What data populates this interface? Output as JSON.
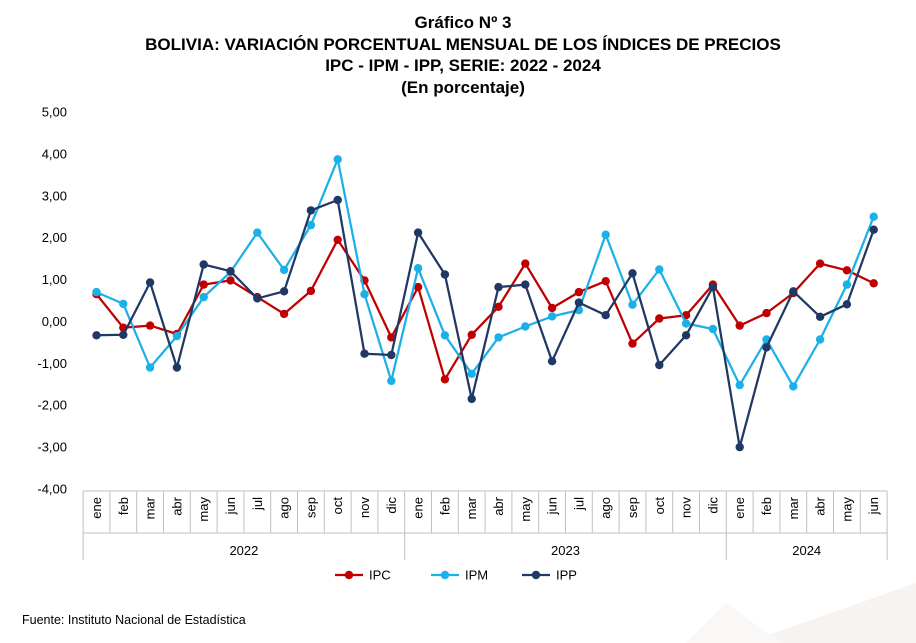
{
  "title": "Gráfico Nº 3",
  "subtitle1": "BOLIVIA: VARIACIÓN PORCENTUAL MENSUAL DE LOS ÍNDICES DE PRECIOS",
  "subtitle2": "IPC - IPM - IPP, SERIE: 2022 - 2024",
  "subtitle3": "(En porcentaje)",
  "source": "Fuente: Instituto Nacional de Estadística",
  "chart_data": {
    "type": "line",
    "ylim": [
      -4,
      5
    ],
    "yticks": [
      "5,00",
      "4,00",
      "3,00",
      "2,00",
      "1,00",
      "0,00",
      "-1,00",
      "-2,00",
      "-3,00",
      "-4,00"
    ],
    "grid": false,
    "legend_position": "bottom",
    "categories": [
      "ene",
      "feb",
      "mar",
      "abr",
      "may",
      "jun",
      "jul",
      "ago",
      "sep",
      "oct",
      "nov",
      "dic",
      "ene",
      "feb",
      "mar",
      "abr",
      "may",
      "jun",
      "jul",
      "ago",
      "sep",
      "oct",
      "nov",
      "dic",
      "ene",
      "feb",
      "mar",
      "abr",
      "may",
      "jun"
    ],
    "years": [
      {
        "label": "2022",
        "start": 0,
        "end": 11
      },
      {
        "label": "2023",
        "start": 12,
        "end": 23
      },
      {
        "label": "2024",
        "start": 24,
        "end": 29
      }
    ],
    "series": [
      {
        "name": "IPC",
        "color": "#c00000",
        "values": [
          0.65,
          -0.15,
          -0.1,
          -0.3,
          0.88,
          0.98,
          0.58,
          0.18,
          0.73,
          1.95,
          0.98,
          -0.38,
          0.82,
          -1.38,
          -0.32,
          0.35,
          1.38,
          0.32,
          0.7,
          0.96,
          -0.53,
          0.07,
          0.15,
          0.88,
          -0.1,
          0.2,
          0.68,
          1.38,
          1.22,
          0.91
        ]
      },
      {
        "name": "IPM",
        "color": "#1cb0e8",
        "values": [
          0.7,
          0.42,
          -1.1,
          -0.35,
          0.58,
          1.18,
          2.12,
          1.23,
          2.3,
          3.87,
          0.65,
          -1.42,
          1.27,
          -0.33,
          -1.25,
          -0.38,
          -0.12,
          0.12,
          0.27,
          2.07,
          0.4,
          1.24,
          -0.05,
          -0.18,
          -1.52,
          -0.43,
          -1.55,
          -0.43,
          0.88,
          2.5
        ]
      },
      {
        "name": "IPP",
        "color": "#203864",
        "values": [
          -0.33,
          -0.32,
          0.93,
          -1.1,
          1.36,
          1.2,
          0.55,
          0.72,
          2.65,
          2.9,
          -0.77,
          -0.8,
          2.12,
          1.12,
          -1.85,
          0.82,
          0.88,
          -0.95,
          0.45,
          0.15,
          1.15,
          -1.04,
          -0.33,
          0.82,
          -3.0,
          -0.62,
          0.72,
          0.11,
          0.41,
          2.19
        ]
      }
    ]
  }
}
